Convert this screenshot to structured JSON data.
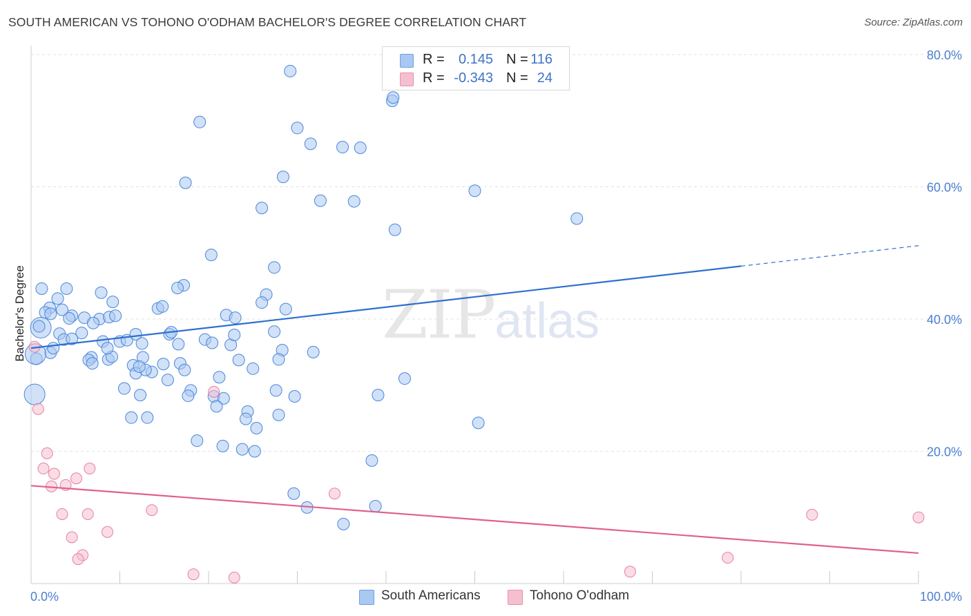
{
  "header": {
    "title": "SOUTH AMERICAN VS TOHONO O'ODHAM BACHELOR'S DEGREE CORRELATION CHART",
    "source": "Source: ZipAtlas.com"
  },
  "watermark": {
    "zip": "ZIP",
    "atlas": "atlas"
  },
  "legend": {
    "rows": [
      {
        "r_label": "R =",
        "r_value": "0.145",
        "n_label": "N =",
        "n_value": "116",
        "color": "#a9c8f2"
      },
      {
        "r_label": "R =",
        "r_value": "-0.343",
        "n_label": "N =",
        "n_value": "24",
        "color": "#f6bfd0"
      }
    ]
  },
  "bottom_legend": {
    "south": "South Americans",
    "tohono": "Tohono O'odham"
  },
  "chart_data": {
    "type": "scatter",
    "xlabel": "",
    "ylabel": "Bachelor's Degree",
    "xlim": [
      0,
      100
    ],
    "ylim": [
      0,
      80
    ],
    "x_tick_labels": [
      "0.0%",
      "100.0%"
    ],
    "y_ticks": [
      20,
      40,
      60,
      80
    ],
    "y_tick_labels": [
      "20.0%",
      "40.0%",
      "60.0%",
      "80.0%"
    ],
    "grid": true,
    "colors": {
      "blue": "#4a86d8",
      "blue_fill": "#a9c8f2",
      "blue_line": "#2f6fcf",
      "pink": "#e87fa0",
      "pink_fill": "#f6bfd0",
      "pink_line": "#e0608c"
    },
    "series": [
      {
        "name": "South Americans",
        "trend": {
          "x0": 0,
          "y0": 35.6,
          "x1": 80,
          "y1": 48.0,
          "dash_to_x": 100,
          "dash_to_y": 51.1
        },
        "points": [
          [
            29.2,
            77.5
          ],
          [
            40.7,
            73.0
          ],
          [
            40.8,
            73.5
          ],
          [
            19.0,
            69.8
          ],
          [
            30.0,
            68.9
          ],
          [
            31.5,
            66.5
          ],
          [
            35.1,
            66.0
          ],
          [
            37.1,
            65.9
          ],
          [
            28.4,
            61.5
          ],
          [
            17.4,
            60.6
          ],
          [
            50.0,
            59.4
          ],
          [
            32.6,
            57.9
          ],
          [
            36.4,
            57.8
          ],
          [
            26.0,
            56.8
          ],
          [
            41.0,
            53.5
          ],
          [
            61.5,
            55.2
          ],
          [
            20.3,
            49.7
          ],
          [
            27.4,
            47.8
          ],
          [
            17.2,
            45.1
          ],
          [
            1.2,
            44.6
          ],
          [
            4.0,
            44.6
          ],
          [
            3.0,
            43.1
          ],
          [
            7.9,
            44.0
          ],
          [
            9.2,
            42.6
          ],
          [
            26.5,
            43.7
          ],
          [
            26.0,
            42.5
          ],
          [
            2.1,
            41.7
          ],
          [
            1.6,
            41.0
          ],
          [
            3.5,
            41.4
          ],
          [
            2.2,
            40.8
          ],
          [
            4.6,
            40.5
          ],
          [
            4.3,
            40.1
          ],
          [
            6.0,
            40.2
          ],
          [
            7.7,
            40.0
          ],
          [
            8.8,
            40.3
          ],
          [
            9.5,
            40.5
          ],
          [
            14.3,
            41.6
          ],
          [
            14.8,
            41.9
          ],
          [
            22.0,
            40.6
          ],
          [
            23.0,
            40.2
          ],
          [
            28.7,
            41.5
          ],
          [
            7.0,
            39.4
          ],
          [
            1.1,
            38.7
          ],
          [
            0.9,
            38.9
          ],
          [
            3.2,
            37.8
          ],
          [
            5.7,
            37.9
          ],
          [
            10.0,
            36.6
          ],
          [
            10.8,
            36.8
          ],
          [
            11.8,
            37.7
          ],
          [
            12.5,
            36.3
          ],
          [
            15.6,
            37.7
          ],
          [
            15.8,
            38.0
          ],
          [
            16.6,
            36.2
          ],
          [
            19.6,
            36.9
          ],
          [
            20.4,
            36.4
          ],
          [
            22.5,
            36.1
          ],
          [
            22.9,
            37.6
          ],
          [
            28.3,
            35.3
          ],
          [
            31.8,
            35.0
          ],
          [
            3.7,
            36.9
          ],
          [
            8.1,
            36.6
          ],
          [
            4.6,
            37.0
          ],
          [
            12.6,
            34.2
          ],
          [
            6.8,
            34.2
          ],
          [
            8.7,
            33.9
          ],
          [
            9.1,
            34.3
          ],
          [
            11.5,
            33.0
          ],
          [
            14.9,
            33.2
          ],
          [
            16.8,
            33.3
          ],
          [
            23.4,
            33.8
          ],
          [
            25.0,
            32.5
          ],
          [
            27.9,
            33.9
          ],
          [
            6.5,
            33.8
          ],
          [
            6.9,
            33.3
          ],
          [
            13.6,
            32.0
          ],
          [
            11.8,
            31.8
          ],
          [
            21.2,
            31.2
          ],
          [
            15.4,
            30.8
          ],
          [
            42.1,
            31.0
          ],
          [
            10.5,
            29.5
          ],
          [
            18.0,
            29.2
          ],
          [
            27.6,
            29.2
          ],
          [
            29.7,
            28.3
          ],
          [
            12.3,
            28.5
          ],
          [
            17.7,
            28.4
          ],
          [
            20.6,
            28.3
          ],
          [
            21.7,
            28.0
          ],
          [
            39.1,
            28.5
          ],
          [
            20.9,
            26.8
          ],
          [
            24.4,
            26.0
          ],
          [
            27.9,
            25.5
          ],
          [
            11.3,
            25.1
          ],
          [
            13.1,
            25.1
          ],
          [
            24.2,
            24.9
          ],
          [
            25.4,
            23.5
          ],
          [
            50.4,
            24.3
          ],
          [
            18.7,
            21.6
          ],
          [
            21.6,
            20.8
          ],
          [
            23.8,
            20.3
          ],
          [
            25.2,
            20.0
          ],
          [
            38.4,
            18.6
          ],
          [
            29.6,
            13.6
          ],
          [
            31.1,
            11.5
          ],
          [
            38.8,
            11.7
          ],
          [
            35.2,
            9.0
          ],
          [
            12.9,
            32.3
          ],
          [
            17.3,
            32.3
          ],
          [
            8.6,
            35.6
          ],
          [
            2.2,
            34.9
          ],
          [
            0.6,
            34.0
          ],
          [
            0.5,
            34.7
          ],
          [
            0.4,
            28.6
          ],
          [
            2.5,
            35.6
          ],
          [
            12.2,
            32.8
          ],
          [
            27.4,
            38.1
          ],
          [
            16.5,
            44.7
          ]
        ],
        "sizes": {
          "large": [
            [
              1.1,
              38.7
            ],
            [
              0.5,
              34.7
            ],
            [
              0.4,
              28.6
            ],
            [
              2.2,
              41.7
            ]
          ]
        }
      },
      {
        "name": "Tohono O'odham",
        "trend": {
          "x0": 0,
          "y0": 14.8,
          "x1": 100,
          "y1": 4.6
        },
        "points": [
          [
            0.4,
            35.8
          ],
          [
            0.8,
            26.4
          ],
          [
            20.6,
            29.0
          ],
          [
            1.8,
            19.7
          ],
          [
            1.4,
            17.4
          ],
          [
            6.6,
            17.4
          ],
          [
            2.6,
            16.6
          ],
          [
            5.1,
            15.9
          ],
          [
            2.3,
            14.7
          ],
          [
            3.9,
            14.9
          ],
          [
            34.2,
            13.6
          ],
          [
            13.6,
            11.1
          ],
          [
            3.5,
            10.5
          ],
          [
            6.4,
            10.5
          ],
          [
            88.0,
            10.4
          ],
          [
            100.0,
            10.0
          ],
          [
            8.6,
            7.8
          ],
          [
            4.6,
            7.0
          ],
          [
            5.8,
            4.3
          ],
          [
            5.3,
            3.7
          ],
          [
            78.5,
            3.9
          ],
          [
            18.3,
            1.4
          ],
          [
            22.9,
            0.9
          ],
          [
            67.5,
            1.8
          ]
        ]
      }
    ]
  }
}
